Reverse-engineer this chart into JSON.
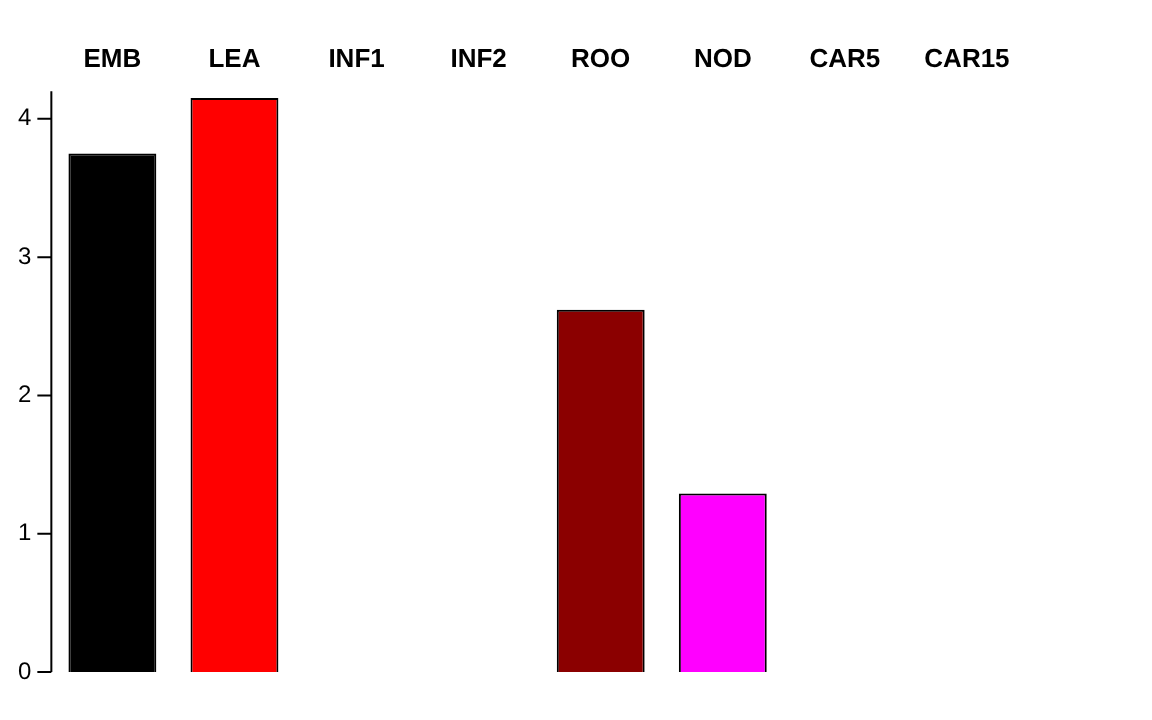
{
  "chart_data": {
    "type": "bar",
    "categories": [
      "EMB",
      "LEA",
      "INF1",
      "INF2",
      "ROO",
      "NOD",
      "CAR5",
      "CAR15"
    ],
    "values": [
      3.75,
      4.15,
      0,
      0,
      2.62,
      1.29,
      0,
      0
    ],
    "colors": [
      "#000000",
      "#ff0000",
      "#006400",
      "#000080",
      "#8b0000",
      "#ff00ff",
      "#000000",
      "#000000"
    ],
    "ylim": [
      0,
      4.2
    ],
    "yticks": [
      0,
      1,
      2,
      3,
      4
    ],
    "grid": false,
    "legend": false
  }
}
